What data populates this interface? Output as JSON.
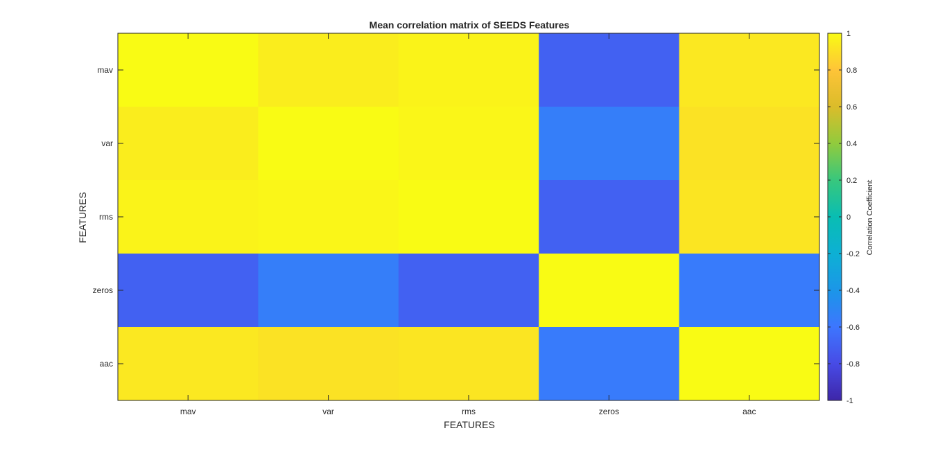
{
  "chart_data": {
    "type": "heatmap",
    "title": "Mean correlation matrix of SEEDS Features",
    "xlabel": "FEATURES",
    "ylabel": "FEATURES",
    "x_categories": [
      "mav",
      "var",
      "rms",
      "zeros",
      "aac"
    ],
    "y_categories": [
      "mav",
      "var",
      "rms",
      "zeros",
      "aac"
    ],
    "values": [
      [
        1.0,
        0.95,
        0.97,
        -0.7,
        0.93
      ],
      [
        0.95,
        1.0,
        0.98,
        -0.55,
        0.91
      ],
      [
        0.97,
        0.98,
        1.0,
        -0.7,
        0.92
      ],
      [
        -0.7,
        -0.55,
        -0.7,
        1.0,
        -0.57
      ],
      [
        0.93,
        0.91,
        0.92,
        -0.57,
        1.0
      ]
    ],
    "colorbar": {
      "label": "Correlation Coefficient",
      "limits": [
        -1,
        1
      ],
      "ticks": [
        1,
        0.8,
        0.6,
        0.4,
        0.2,
        0,
        -0.2,
        -0.4,
        -0.6,
        -0.8,
        -1
      ],
      "colormap": "parula"
    },
    "grid": false
  }
}
